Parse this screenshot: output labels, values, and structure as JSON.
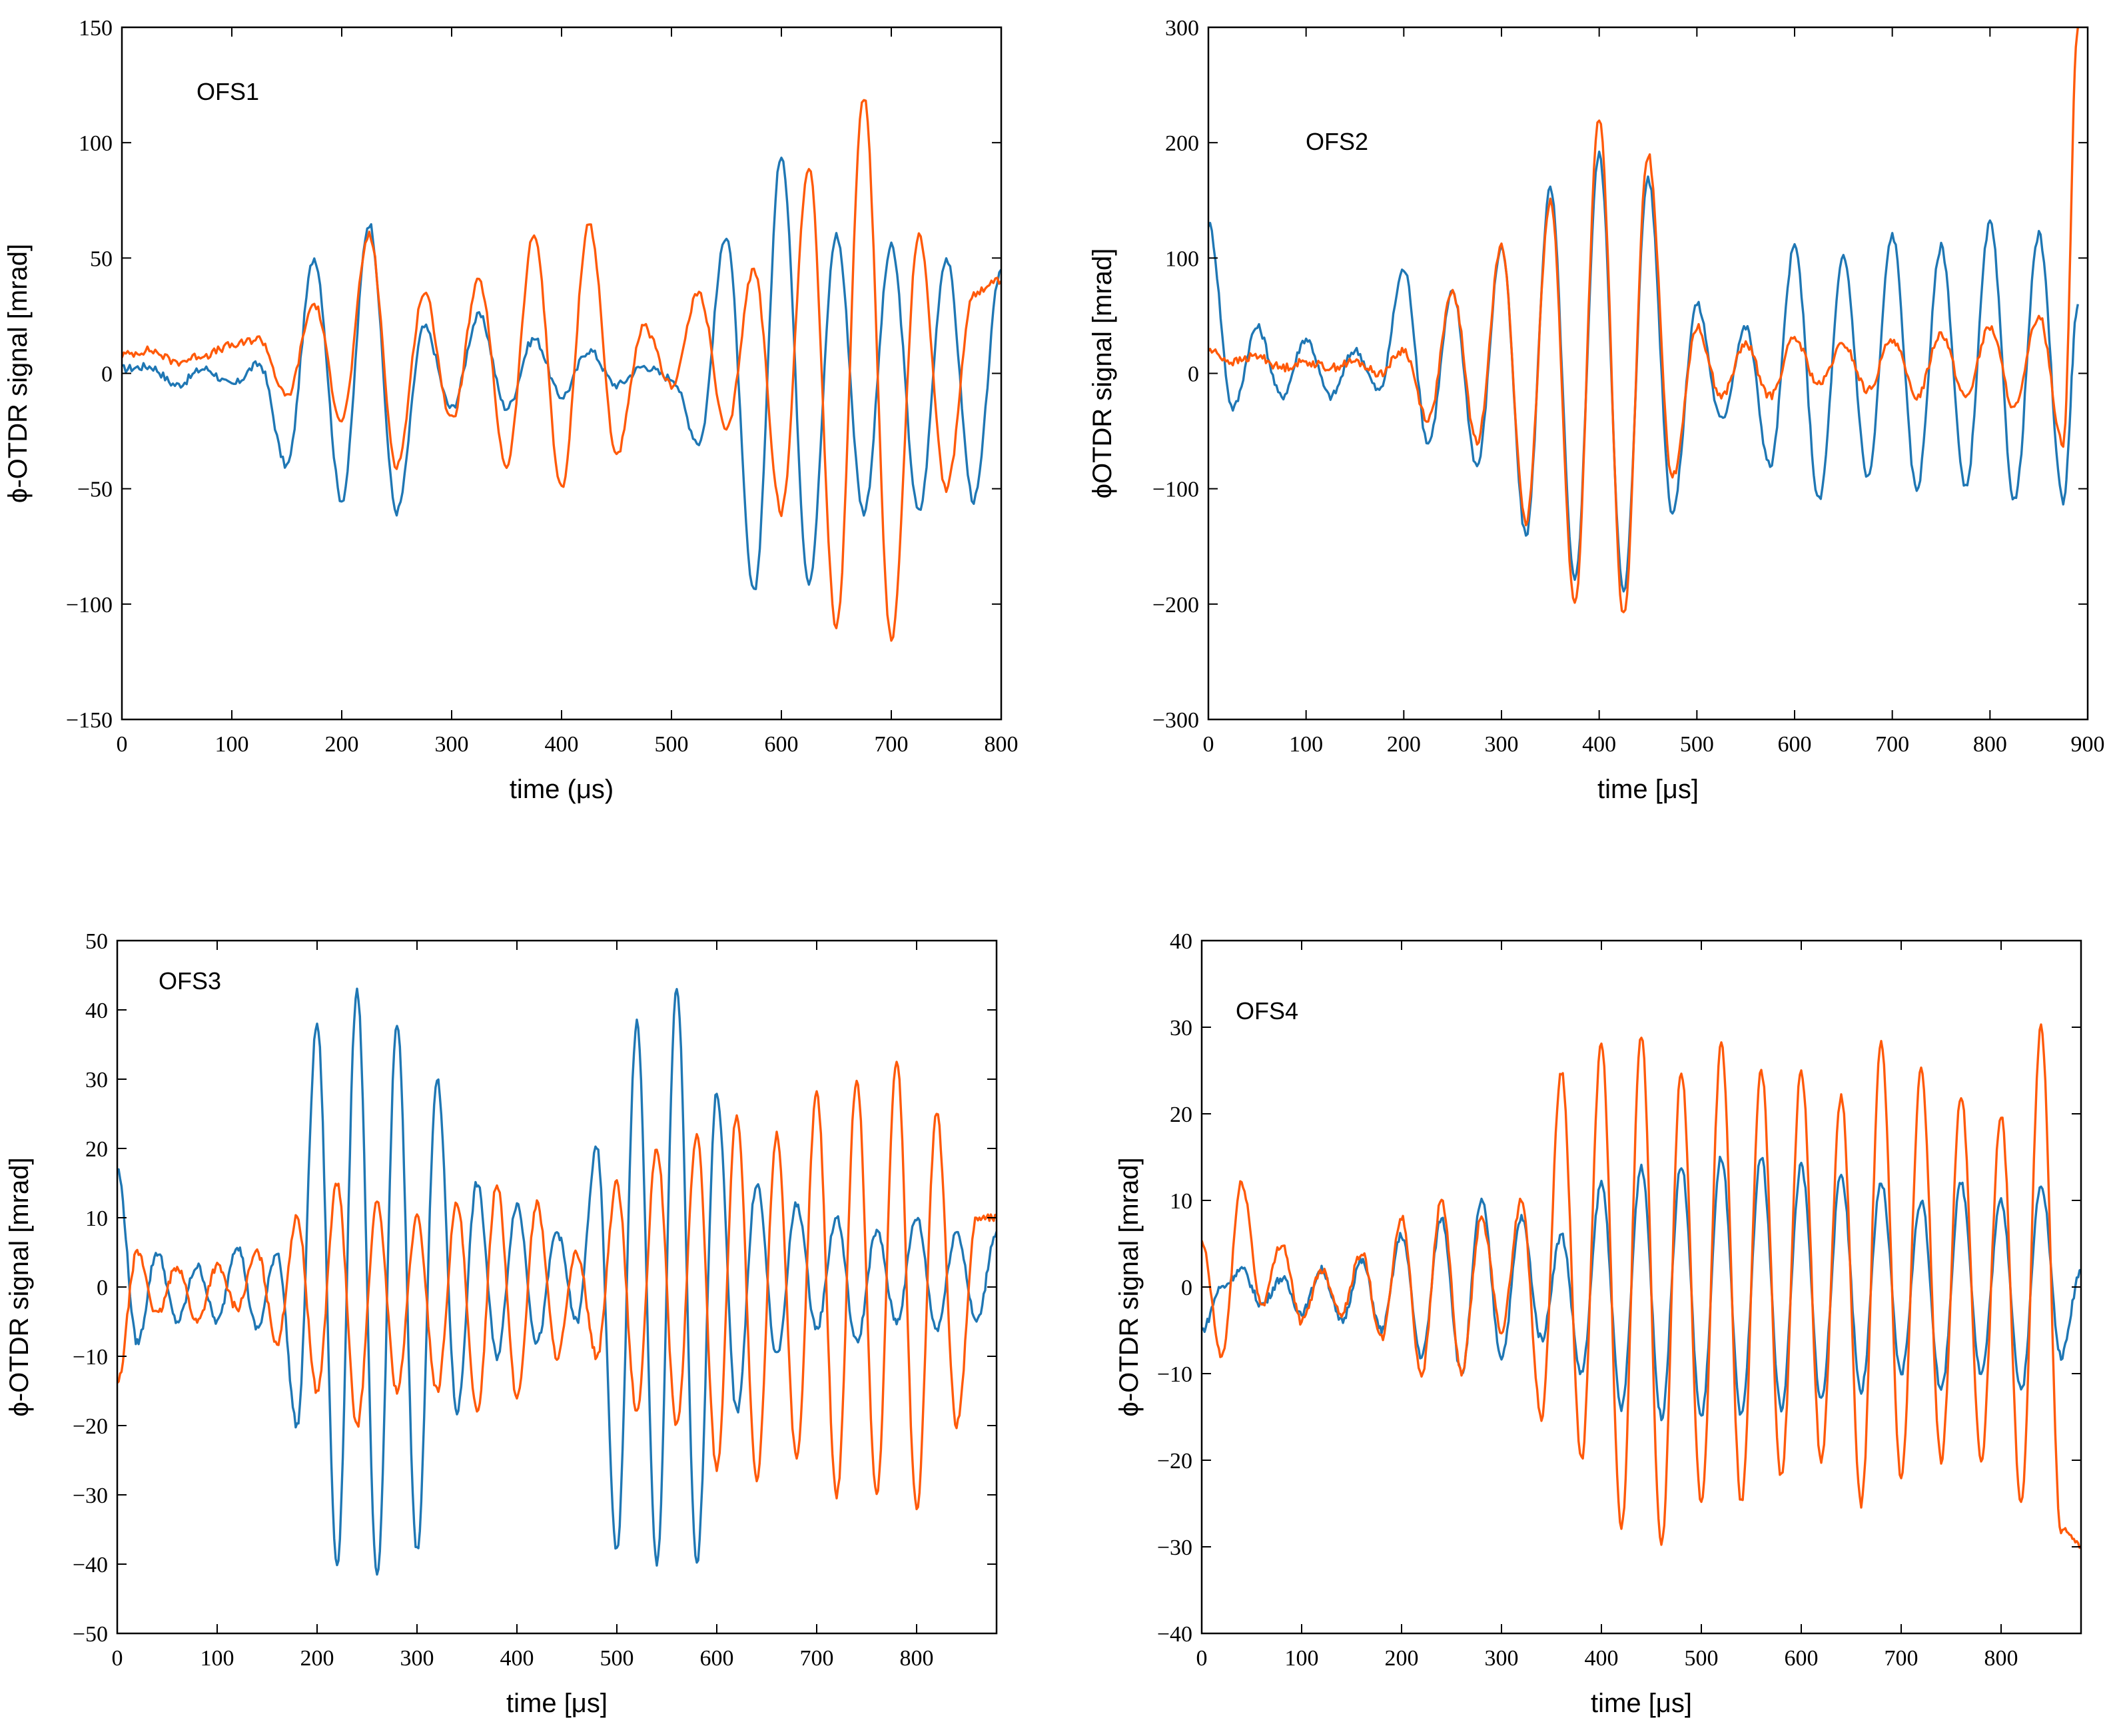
{
  "figure": {
    "colors": {
      "series_blue": "#1f77b4",
      "series_orange": "#ff5a0a"
    },
    "panels": [
      {
        "label": "OFS1",
        "xlabel": "time (μs)",
        "ylabel": "ϕ-OTDR signal  [mrad]",
        "xlim": [
          0,
          800
        ],
        "ylim": [
          -150,
          150
        ],
        "xticks": [
          "0",
          "100",
          "200",
          "300",
          "400",
          "500",
          "600",
          "700",
          "800"
        ],
        "yticks": [
          "−150",
          "−100",
          "−50",
          "0",
          "50",
          "100",
          "150"
        ]
      },
      {
        "label": "OFS2",
        "xlabel": "time  [μs]",
        "ylabel": "ϕOTDR signal [mrad]",
        "xlim": [
          0,
          900
        ],
        "ylim": [
          -300,
          300
        ],
        "xticks": [
          "0",
          "100",
          "200",
          "300",
          "400",
          "500",
          "600",
          "700",
          "800",
          "900"
        ],
        "yticks": [
          "−300",
          "−200",
          "−100",
          "0",
          "100",
          "200",
          "300"
        ]
      },
      {
        "label": "OFS3",
        "xlabel": "time  [μs]",
        "ylabel": "ϕ-OTDR signal [mrad]",
        "xlim": [
          0,
          880
        ],
        "ylim": [
          -50,
          50
        ],
        "xticks": [
          "0",
          "100",
          "200",
          "300",
          "400",
          "500",
          "600",
          "700",
          "800"
        ],
        "yticks": [
          "−50",
          "−40",
          "−30",
          "−20",
          "−10",
          "0",
          "10",
          "20",
          "30",
          "40",
          "50"
        ]
      },
      {
        "label": "OFS4",
        "xlabel": "time  [μs]",
        "ylabel": "ϕ-OTDR signal [mrad]",
        "xlim": [
          0,
          880
        ],
        "ylim": [
          -40,
          40
        ],
        "xticks": [
          "0",
          "100",
          "200",
          "300",
          "400",
          "500",
          "600",
          "700",
          "800"
        ],
        "yticks": [
          "−40",
          "−30",
          "−20",
          "−10",
          "0",
          "10",
          "20",
          "30",
          "40"
        ]
      }
    ]
  },
  "chart_data": [
    {
      "type": "line",
      "title": "OFS1",
      "xlabel": "time (μs)",
      "ylabel": "ϕ-OTDR signal  [mrad]",
      "xlim": [
        0,
        800
      ],
      "ylim": [
        -150,
        150
      ],
      "x": [
        0,
        25,
        50,
        75,
        100,
        125,
        150,
        175,
        200,
        225,
        250,
        275,
        300,
        325,
        350,
        375,
        400,
        425,
        450,
        475,
        500,
        525,
        550,
        575,
        600,
        625,
        650,
        675,
        700,
        725,
        750,
        775,
        800
      ],
      "series": [
        {
          "name": "blue",
          "color": "#1f77b4",
          "values": [
            2,
            3,
            -5,
            2,
            -5,
            4,
            -40,
            50,
            -55,
            65,
            -60,
            20,
            -15,
            25,
            -15,
            15,
            -10,
            10,
            -5,
            3,
            -2,
            -30,
            60,
            -95,
            95,
            -90,
            60,
            -60,
            55,
            -60,
            50,
            -55,
            45
          ]
        },
        {
          "name": "orange",
          "color": "#ff5a0a",
          "values": [
            8,
            10,
            5,
            8,
            12,
            15,
            -10,
            30,
            -20,
            60,
            -40,
            35,
            -20,
            40,
            -40,
            60,
            -50,
            65,
            -35,
            20,
            -5,
            35,
            -25,
            45,
            -60,
            90,
            -110,
            120,
            -115,
            60,
            -50,
            35,
            40
          ]
        }
      ]
    },
    {
      "type": "line",
      "title": "OFS2",
      "xlabel": "time  [μs]",
      "ylabel": "ϕOTDR signal [mrad]",
      "xlim": [
        0,
        900
      ],
      "ylim": [
        -300,
        300
      ],
      "x": [
        0,
        25,
        50,
        75,
        100,
        125,
        150,
        175,
        200,
        225,
        250,
        275,
        300,
        325,
        350,
        375,
        400,
        425,
        450,
        475,
        500,
        525,
        550,
        575,
        600,
        625,
        650,
        675,
        700,
        725,
        750,
        775,
        800,
        825,
        850,
        875,
        890
      ],
      "series": [
        {
          "name": "blue",
          "color": "#1f77b4",
          "values": [
            130,
            -30,
            40,
            -20,
            30,
            -20,
            20,
            -15,
            90,
            -60,
            70,
            -80,
            110,
            -140,
            160,
            -180,
            190,
            -190,
            170,
            -120,
            60,
            -40,
            40,
            -80,
            110,
            -110,
            100,
            -90,
            120,
            -100,
            110,
            -100,
            130,
            -110,
            120,
            -110,
            60
          ]
        },
        {
          "name": "orange",
          "color": "#ff5a0a",
          "values": [
            20,
            10,
            15,
            5,
            10,
            5,
            10,
            0,
            20,
            -40,
            70,
            -60,
            110,
            -130,
            150,
            -200,
            220,
            -210,
            190,
            -90,
            40,
            -20,
            25,
            -20,
            30,
            -10,
            25,
            -15,
            30,
            -20,
            35,
            -20,
            40,
            -30,
            50,
            -60,
            300
          ]
        }
      ]
    },
    {
      "type": "line",
      "title": "OFS3",
      "xlabel": "time  [μs]",
      "ylabel": "ϕ-OTDR signal [mrad]",
      "xlim": [
        0,
        880
      ],
      "ylim": [
        -50,
        50
      ],
      "x": [
        0,
        20,
        40,
        60,
        80,
        100,
        120,
        140,
        160,
        180,
        200,
        220,
        240,
        260,
        280,
        300,
        320,
        340,
        360,
        380,
        400,
        420,
        440,
        460,
        480,
        500,
        520,
        540,
        560,
        580,
        600,
        620,
        640,
        660,
        680,
        700,
        720,
        740,
        760,
        780,
        800,
        820,
        840,
        860,
        880
      ],
      "series": [
        {
          "name": "blue",
          "color": "#1f77b4",
          "values": [
            17,
            -8,
            5,
            -5,
            3,
            -5,
            6,
            -6,
            5,
            -20,
            38,
            -40,
            43,
            -42,
            38,
            -38,
            30,
            -18,
            15,
            -10,
            12,
            -8,
            8,
            -5,
            20,
            -38,
            38,
            -40,
            43,
            -40,
            28,
            -18,
            15,
            -10,
            12,
            -6,
            10,
            -8,
            8,
            -5,
            10,
            -6,
            8,
            -5,
            8
          ]
        },
        {
          "name": "orange",
          "color": "#ff5a0a",
          "values": [
            -14,
            5,
            -4,
            3,
            -5,
            3,
            -3,
            5,
            -8,
            10,
            -15,
            15,
            -20,
            12,
            -15,
            10,
            -15,
            12,
            -18,
            15,
            -16,
            12,
            -10,
            5,
            -10,
            15,
            -18,
            20,
            -20,
            22,
            -26,
            25,
            -28,
            22,
            -25,
            28,
            -30,
            30,
            -30,
            33,
            -32,
            25,
            -20,
            10,
            10
          ]
        }
      ]
    },
    {
      "type": "line",
      "title": "OFS4",
      "xlabel": "time  [μs]",
      "ylabel": "ϕ-OTDR signal [mrad]",
      "xlim": [
        0,
        880
      ],
      "ylim": [
        -40,
        40
      ],
      "x": [
        0,
        20,
        40,
        60,
        80,
        100,
        120,
        140,
        160,
        180,
        200,
        220,
        240,
        260,
        280,
        300,
        320,
        340,
        360,
        380,
        400,
        420,
        440,
        460,
        480,
        500,
        520,
        540,
        560,
        580,
        600,
        620,
        640,
        660,
        680,
        700,
        720,
        740,
        760,
        780,
        800,
        820,
        840,
        860,
        880
      ],
      "series": [
        {
          "name": "blue",
          "color": "#1f77b4",
          "values": [
            -5,
            0,
            2,
            -2,
            1,
            -3,
            2,
            -4,
            3,
            -5,
            6,
            -8,
            8,
            -10,
            10,
            -8,
            8,
            -6,
            6,
            -10,
            12,
            -14,
            14,
            -15,
            14,
            -15,
            15,
            -15,
            15,
            -14,
            14,
            -13,
            13,
            -12,
            12,
            -10,
            10,
            -12,
            12,
            -10,
            10,
            -12,
            12,
            -8,
            2
          ]
        },
        {
          "name": "orange",
          "color": "#ff5a0a",
          "values": [
            5,
            -8,
            12,
            -2,
            5,
            -4,
            2,
            -3,
            4,
            -6,
            8,
            -10,
            10,
            -10,
            8,
            -5,
            10,
            -15,
            25,
            -20,
            28,
            -28,
            29,
            -30,
            25,
            -25,
            28,
            -25,
            25,
            -22,
            25,
            -20,
            22,
            -25,
            28,
            -22,
            25,
            -20,
            22,
            -20,
            20,
            -25,
            30,
            -28,
            -30
          ]
        }
      ]
    }
  ]
}
